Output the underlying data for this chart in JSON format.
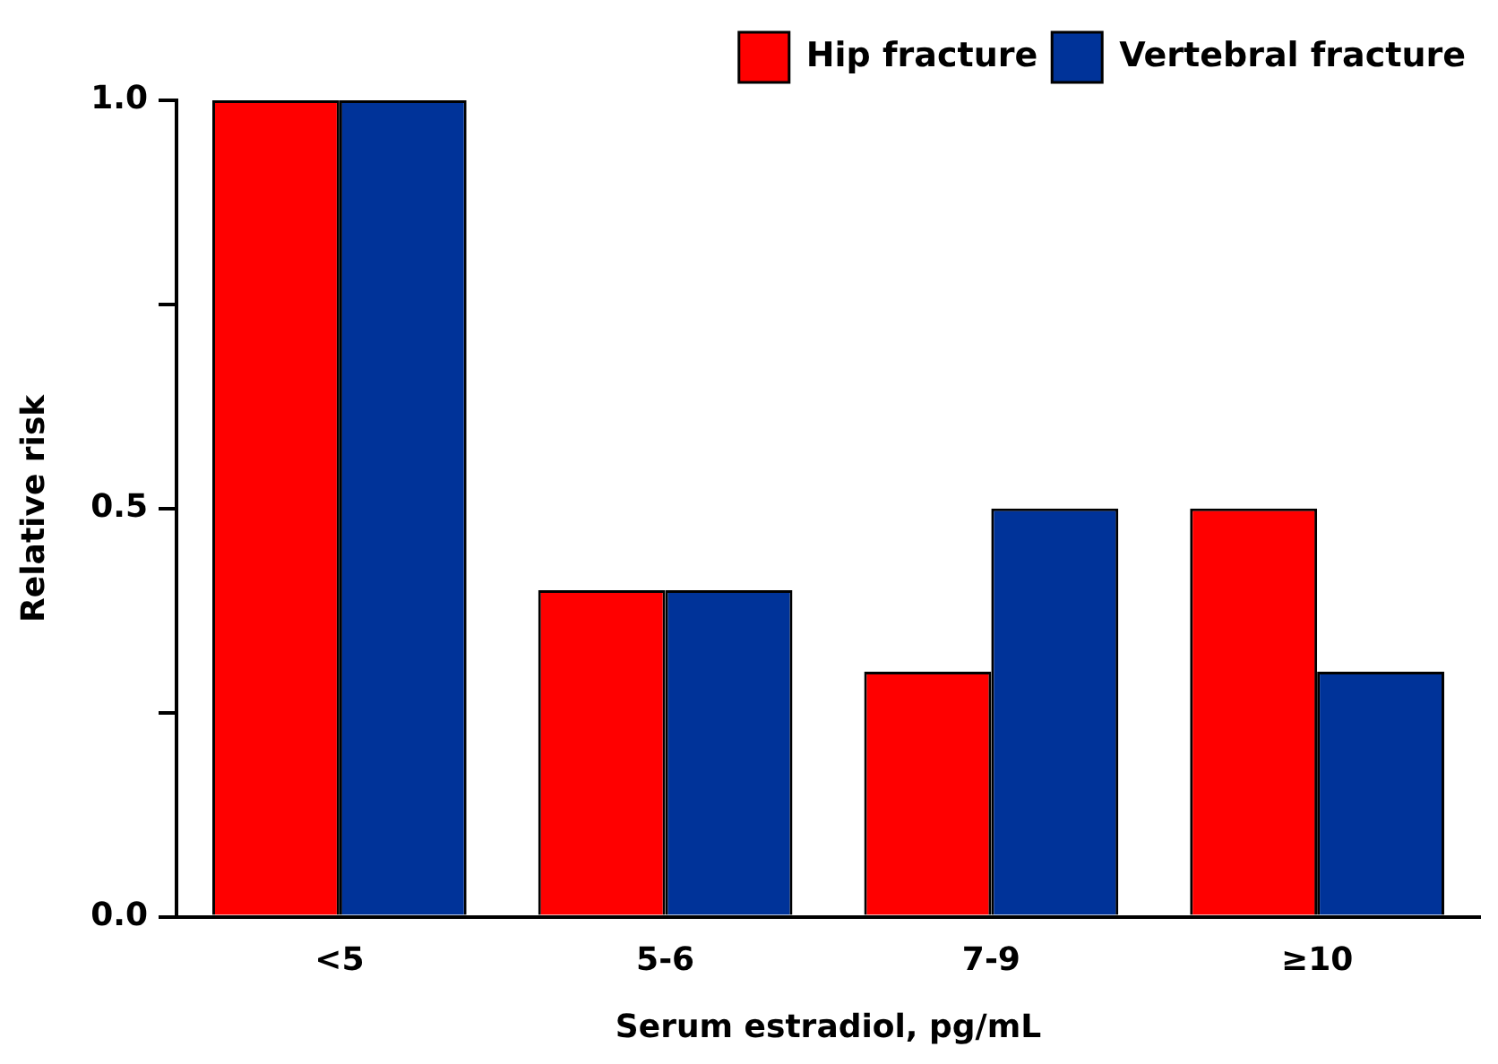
{
  "chart_data": {
    "type": "bar",
    "xlabel": "Serum estradiol, pg/mL",
    "ylabel": "Relative risk",
    "categories": [
      "<5",
      "5-6",
      "7-9",
      "≥10"
    ],
    "series": [
      {
        "name": "Hip fracture",
        "color": "#ff0000",
        "values": [
          1.0,
          0.4,
          0.3,
          0.5
        ]
      },
      {
        "name": "Vertebral fracture",
        "color": "#003399",
        "values": [
          1.0,
          0.4,
          0.5,
          0.3
        ]
      }
    ],
    "ylim": [
      0,
      1
    ],
    "yticks": [
      {
        "value": 0,
        "label": "0.0"
      },
      {
        "value": 0.25,
        "label": null
      },
      {
        "value": 0.5,
        "label": "0.5"
      },
      {
        "value": 0.75,
        "label": null
      },
      {
        "value": 1,
        "label": "1.0"
      }
    ],
    "grid": false,
    "legend": "top right"
  }
}
